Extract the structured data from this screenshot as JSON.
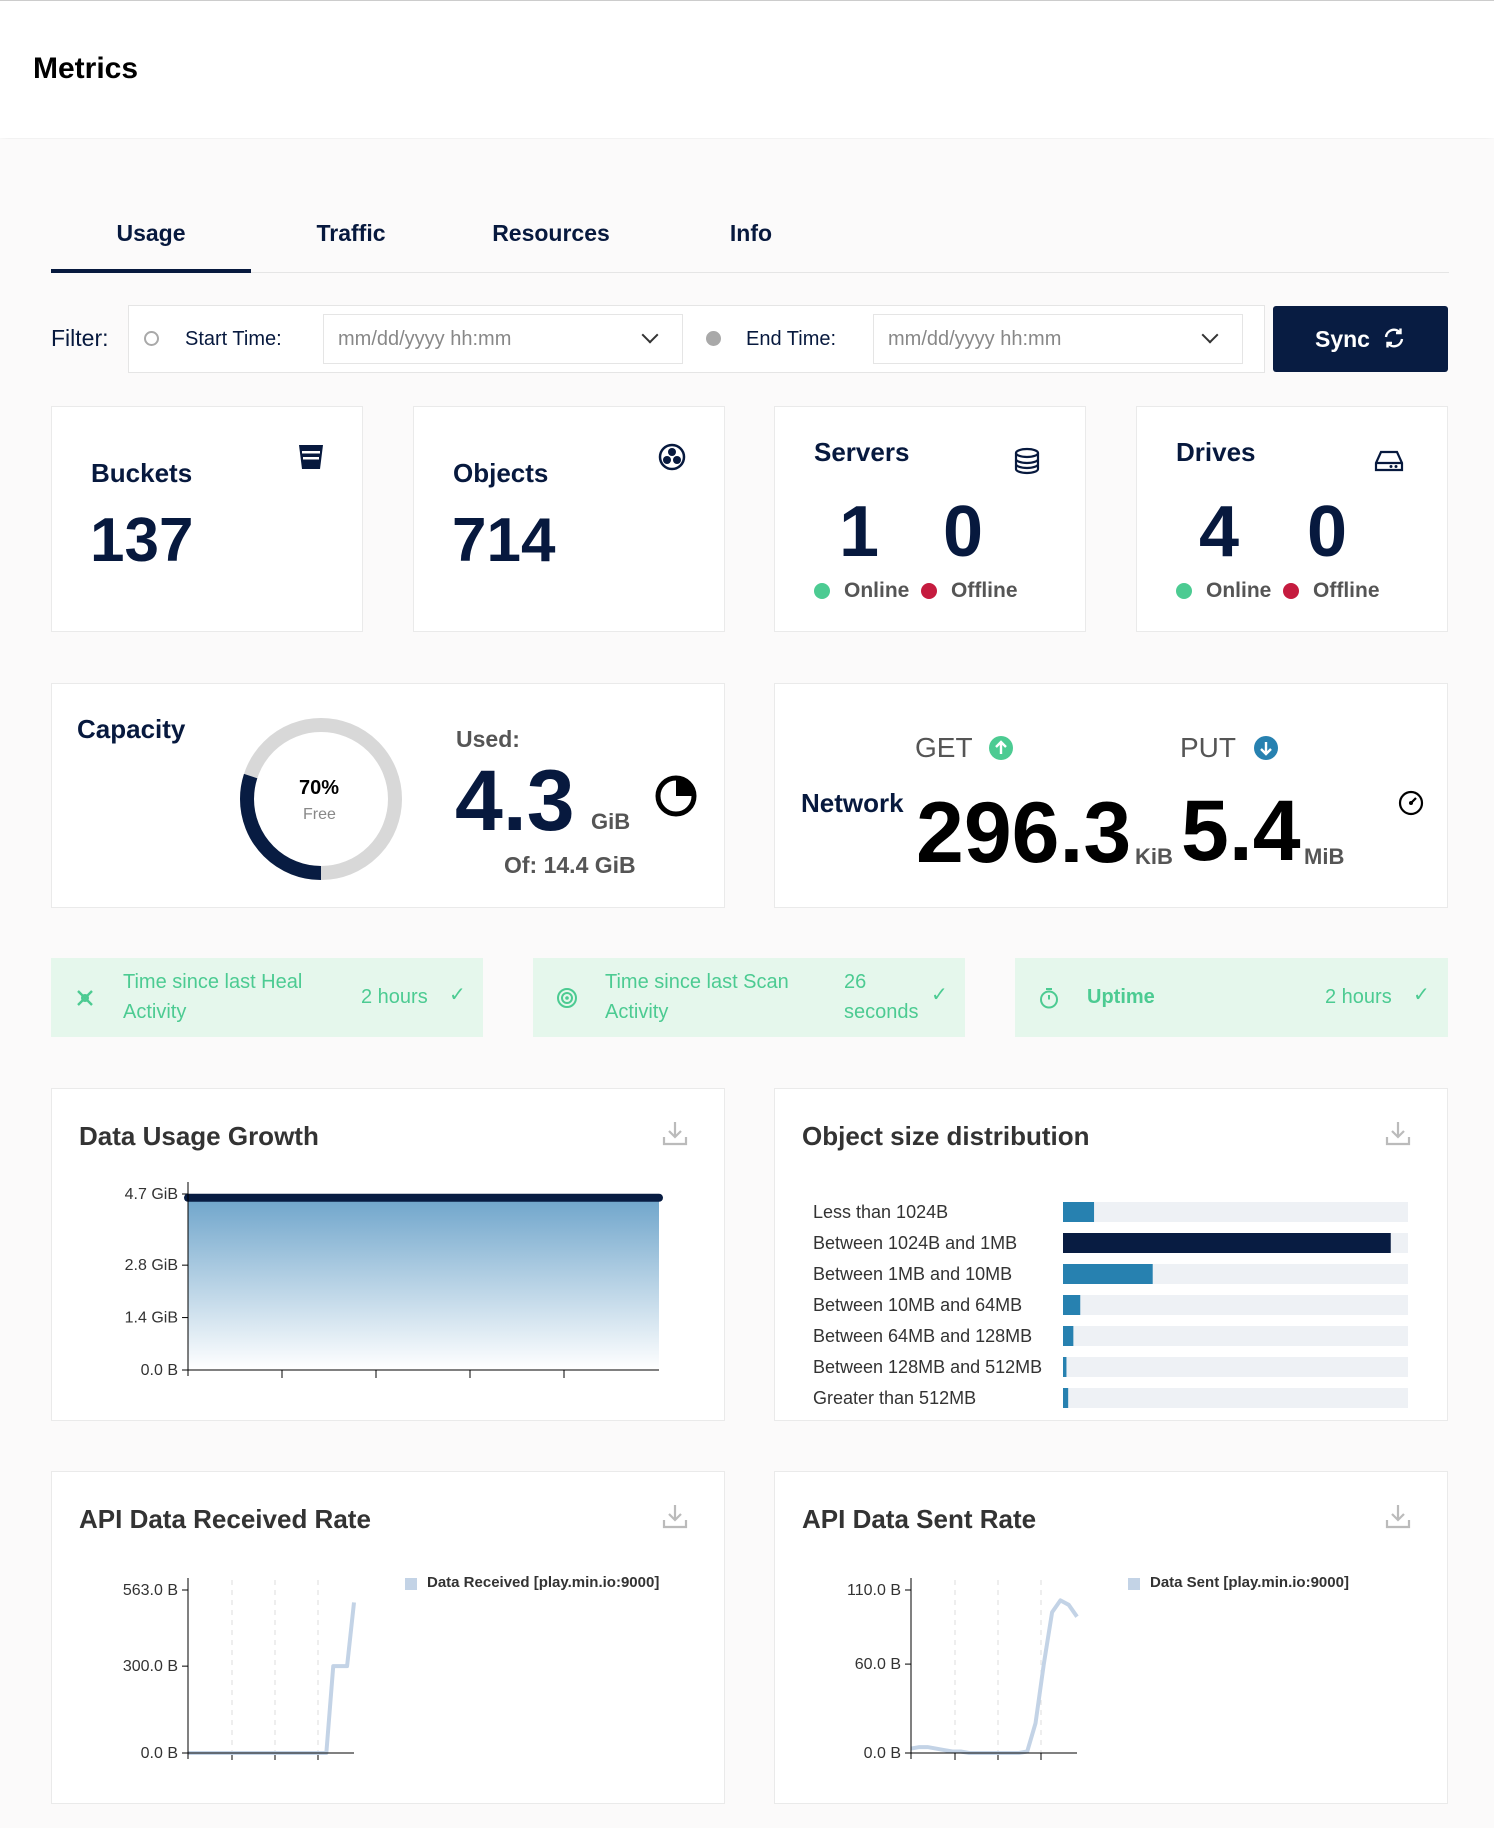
{
  "header": {
    "title": "Metrics"
  },
  "tabs": [
    {
      "label": "Usage"
    },
    {
      "label": "Traffic"
    },
    {
      "label": "Resources"
    },
    {
      "label": "Info"
    }
  ],
  "filter": {
    "label": "Filter:",
    "start_label": "Start Time:",
    "start_placeholder": "mm/dd/yyyy hh:mm",
    "end_label": "End Time:",
    "end_placeholder": "mm/dd/yyyy hh:mm",
    "sync_label": "Sync"
  },
  "summary": {
    "buckets": {
      "title": "Buckets",
      "value": "137"
    },
    "objects": {
      "title": "Objects",
      "value": "714"
    },
    "servers": {
      "title": "Servers",
      "online": "1",
      "offline": "0",
      "online_label": "Online",
      "offline_label": "Offline"
    },
    "drives": {
      "title": "Drives",
      "online": "4",
      "offline": "0",
      "online_label": "Online",
      "offline_label": "Offline"
    }
  },
  "capacity": {
    "title": "Capacity",
    "free_percent": "70%",
    "free_label": "Free",
    "used_fraction": 0.3,
    "used_label": "Used:",
    "used_value": "4.3",
    "used_unit": "GiB",
    "of_text": "Of: 14.4 GiB"
  },
  "network": {
    "title": "Network",
    "get_label": "GET",
    "put_label": "PUT",
    "get_value": "296.3",
    "get_unit": "KiB",
    "put_value": "5.4",
    "put_unit": "MiB"
  },
  "health": [
    {
      "label": "Time since last Heal Activity",
      "value": "2 hours"
    },
    {
      "label": "Time since last Scan Activity",
      "value": "26 seconds"
    },
    {
      "label": "Uptime",
      "value": "2 hours"
    }
  ],
  "colors": {
    "navy": "#07193E",
    "green": "#4CCB92",
    "red": "#C51B3F",
    "blue": "#2781B0",
    "accent_green_bg": "#E5F7EC"
  },
  "usage_chart": {
    "title": "Data Usage Growth"
  },
  "dist_chart": {
    "title": "Object size distribution"
  },
  "recv_chart": {
    "title": "API Data Received Rate",
    "legend": "Data Received [play.min.io:9000]"
  },
  "sent_chart": {
    "title": "API Data Sent Rate",
    "legend": "Data Sent [play.min.io:9000]"
  },
  "chart_data": [
    {
      "type": "area",
      "title": "Data Usage Growth",
      "yticks": [
        "4.7 GiB",
        "2.8 GiB",
        "1.4 GiB",
        "0.0 B"
      ],
      "ylim": [
        0,
        4.7
      ],
      "y": [
        4.6,
        4.6,
        4.6,
        4.6,
        4.6,
        4.6
      ]
    },
    {
      "type": "bar",
      "title": "Object size distribution",
      "categories": [
        "Less than 1024B",
        "Between 1024B and 1MB",
        "Between 1MB and 10MB",
        "Between 10MB and 64MB",
        "Between 64MB and 128MB",
        "Between 128MB and 512MB",
        "Greater than 512MB"
      ],
      "values": [
        9,
        95,
        26,
        5,
        3,
        1,
        1.5
      ],
      "max": 100,
      "highlight_index": 1
    },
    {
      "type": "line",
      "title": "API Data Received Rate",
      "yticks": [
        "563.0 B",
        "300.0 B",
        "0.0 B"
      ],
      "ylim": [
        0,
        563
      ],
      "y": [
        0,
        0,
        0,
        0,
        0,
        0,
        0,
        0,
        0,
        0,
        0,
        0,
        0,
        0,
        0,
        0,
        0,
        0,
        0,
        0,
        0,
        300,
        300,
        300,
        520
      ],
      "series": [
        {
          "name": "Data Received [play.min.io:9000]"
        }
      ]
    },
    {
      "type": "line",
      "title": "API Data Sent Rate",
      "yticks": [
        "110.0 B",
        "60.0 B",
        "0.0 B"
      ],
      "ylim": [
        0,
        110
      ],
      "y": [
        3,
        4,
        4,
        3,
        2,
        1,
        1,
        0,
        0,
        0,
        0,
        0,
        0,
        0,
        1,
        20,
        60,
        95,
        103,
        100,
        92
      ],
      "series": [
        {
          "name": "Data Sent [play.min.io:9000]"
        }
      ]
    }
  ]
}
